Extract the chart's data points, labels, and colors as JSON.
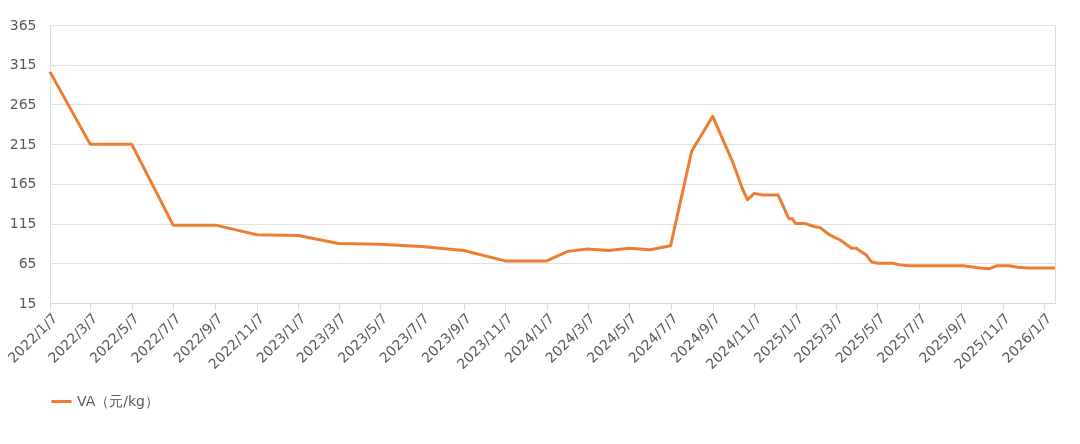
{
  "chart_data": {
    "type": "line",
    "x": [
      "2022-01-07",
      "2022-03-07",
      "2022-05-07",
      "2022-07-07",
      "2022-09-07",
      "2022-11-07",
      "2023-01-07",
      "2023-03-07",
      "2023-05-07",
      "2023-07-07",
      "2023-09-07",
      "2023-11-07",
      "2024-01-07",
      "2024-02-07",
      "2024-03-07",
      "2024-04-07",
      "2024-05-07",
      "2024-06-07",
      "2024-07-07",
      "2024-08-07",
      "2024-09-07",
      "2024-10-07",
      "2024-10-21",
      "2024-10-28",
      "2024-11-07",
      "2024-11-19",
      "2024-12-12",
      "2024-12-28",
      "2025-01-02",
      "2025-01-07",
      "2025-01-21",
      "2025-02-04",
      "2025-02-12",
      "2025-02-25",
      "2025-03-14",
      "2025-03-30",
      "2025-04-06",
      "2025-04-21",
      "2025-04-28",
      "2025-05-07",
      "2025-05-30",
      "2025-06-09",
      "2025-06-22",
      "2025-09-10",
      "2025-10-05",
      "2025-10-18",
      "2025-10-30",
      "2025-11-17",
      "2025-11-29",
      "2025-12-14",
      "2026-01-23"
    ],
    "series": [
      {
        "name": "VA（元/kg）",
        "color": "#ed7d31",
        "values": [
          306,
          215,
          215,
          113,
          113,
          101,
          100,
          90,
          89,
          86,
          81,
          68,
          68,
          80,
          83,
          81,
          84,
          82,
          87,
          206,
          250,
          191,
          158,
          145,
          153,
          151,
          151,
          121,
          121,
          115,
          115,
          111,
          110,
          101,
          94,
          84,
          84,
          75,
          67,
          65,
          65,
          63,
          62,
          62,
          59,
          58,
          62,
          62,
          60,
          59,
          59
        ]
      }
    ],
    "xlim": [
      "2022-01-07",
      "2026-01-23"
    ],
    "xticks": [
      {
        "value": "2022-01-07",
        "label": "2022/1/7"
      },
      {
        "value": "2022-03-07",
        "label": "2022/3/7"
      },
      {
        "value": "2022-05-07",
        "label": "2022/5/7"
      },
      {
        "value": "2022-07-07",
        "label": "2022/7/7"
      },
      {
        "value": "2022-09-07",
        "label": "2022/9/7"
      },
      {
        "value": "2022-11-07",
        "label": "2022/11/7"
      },
      {
        "value": "2023-01-07",
        "label": "2023/1/7"
      },
      {
        "value": "2023-03-07",
        "label": "2023/3/7"
      },
      {
        "value": "2023-05-07",
        "label": "2023/5/7"
      },
      {
        "value": "2023-07-07",
        "label": "2023/7/7"
      },
      {
        "value": "2023-09-07",
        "label": "2023/9/7"
      },
      {
        "value": "2023-11-07",
        "label": "2023/11/7"
      },
      {
        "value": "2024-01-07",
        "label": "2024/1/7"
      },
      {
        "value": "2024-03-07",
        "label": "2024/3/7"
      },
      {
        "value": "2024-05-07",
        "label": "2024/5/7"
      },
      {
        "value": "2024-07-07",
        "label": "2024/7/7"
      },
      {
        "value": "2024-09-07",
        "label": "2024/9/7"
      },
      {
        "value": "2024-11-07",
        "label": "2024/11/7"
      },
      {
        "value": "2025-01-07",
        "label": "2025/1/7"
      },
      {
        "value": "2025-03-07",
        "label": "2025/3/7"
      },
      {
        "value": "2025-05-07",
        "label": "2025/5/7"
      },
      {
        "value": "2025-07-07",
        "label": "2025/7/7"
      },
      {
        "value": "2025-09-07",
        "label": "2025/9/7"
      },
      {
        "value": "2025-11-07",
        "label": "2025/11/7"
      },
      {
        "value": "2026-01-07",
        "label": "2026/1/7"
      }
    ],
    "ylim": [
      15,
      365
    ],
    "yticks": [
      15,
      65,
      115,
      165,
      215,
      265,
      315,
      365
    ],
    "grid": "y",
    "legend": "bottom",
    "marker": "none",
    "line_style": "solid"
  }
}
